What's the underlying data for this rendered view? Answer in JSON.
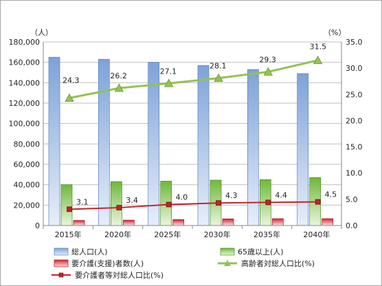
{
  "chart_data": {
    "type": "bar+line",
    "categories": [
      "2015年",
      "2020年",
      "2025年",
      "2030年",
      "2035年",
      "2040年"
    ],
    "y_left": {
      "unit_label": "（人）",
      "range": [
        0,
        180000
      ],
      "ticks": [
        "0",
        "20,000",
        "40,000",
        "60,000",
        "80,000",
        "100,000",
        "120,000",
        "140,000",
        "160,000",
        "180,000"
      ]
    },
    "y_right": {
      "unit_label": "（%）",
      "range": [
        0,
        35
      ],
      "ticks": [
        "0.0",
        "5.0",
        "10.0",
        "15.0",
        "20.0",
        "25.0",
        "30.0",
        "35.0"
      ]
    },
    "bar_series": [
      {
        "name": "総人口(人)",
        "color": "#7ea2d8",
        "values": [
          165000,
          163000,
          160000,
          157000,
          153000,
          149000
        ]
      },
      {
        "name": "65歳以上(人)",
        "color": "#7ac144",
        "values": [
          40000,
          43000,
          43500,
          44500,
          45000,
          47000
        ]
      },
      {
        "name": "要介護(支援)者数(人)",
        "color": "#d9303a",
        "values": [
          5000,
          5300,
          5800,
          6500,
          6700,
          6700
        ]
      }
    ],
    "line_series": [
      {
        "name": "高齢者対総人口比(%)",
        "color": "#92c353",
        "marker": "triangle",
        "values": [
          24.3,
          26.2,
          27.1,
          28.1,
          29.3,
          31.5
        ],
        "labels": [
          "24.3",
          "26.2",
          "27.1",
          "28.1",
          "29.3",
          "31.5"
        ]
      },
      {
        "name": "要介護者等対総人口比(%)",
        "color": "#c0232b",
        "marker": "square",
        "values": [
          3.1,
          3.4,
          4.0,
          4.3,
          4.4,
          4.5
        ],
        "labels": [
          "3.1",
          "3.4",
          "4.0",
          "4.3",
          "4.4",
          "4.5"
        ]
      }
    ],
    "legend_position": "bottom",
    "grid": "horizontal"
  }
}
